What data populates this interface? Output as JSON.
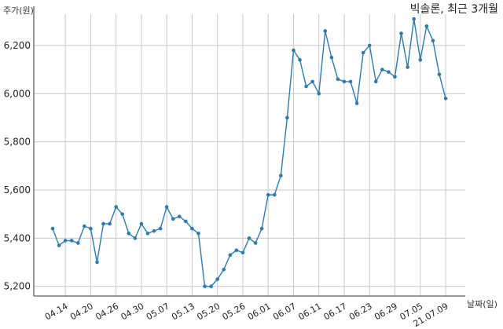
{
  "chart_data": {
    "type": "line",
    "title": "빅솔론, 최근 3개월",
    "xlabel": "날짜(일)",
    "ylabel": "주가(원)",
    "ylim": [
      5160,
      6330
    ],
    "yticks": [
      5200,
      5400,
      5600,
      5800,
      6000,
      6200
    ],
    "ytick_labels": [
      "5,200",
      "5,400",
      "5,600",
      "5,800",
      "6,000",
      "6,200"
    ],
    "xtick_indices": [
      2,
      6,
      10,
      14,
      18,
      22,
      26,
      30,
      34,
      38,
      42,
      46,
      50,
      54,
      58,
      62
    ],
    "xtick_labels": [
      "04.14",
      "04.20",
      "04.26",
      "04.30",
      "05.07",
      "05.13",
      "05.20",
      "05.26",
      "06.01",
      "06.07",
      "06.11",
      "06.17",
      "06.23",
      "06.29",
      "07.05",
      "21.07.09"
    ],
    "grid": true,
    "color": "#2b7bb0",
    "series": [
      {
        "values": [
          5440,
          5370,
          5390,
          5390,
          5380,
          5450,
          5440,
          5300,
          5460,
          5460,
          5530,
          5500,
          5420,
          5400,
          5460,
          5420,
          5430,
          5440,
          5530,
          5480,
          5490,
          5470,
          5440,
          5420,
          5200,
          5200,
          5230,
          5270,
          5330,
          5350,
          5340,
          5400,
          5380,
          5440,
          5580,
          5580,
          5660,
          5900,
          6180,
          6140,
          6030,
          6050,
          6000,
          6260,
          6150,
          6060,
          6050,
          6050,
          5960,
          6170,
          6200,
          6050,
          6100,
          6090,
          6070,
          6250,
          6110,
          6310,
          6140,
          6280,
          6220,
          6080,
          5980
        ]
      }
    ]
  }
}
